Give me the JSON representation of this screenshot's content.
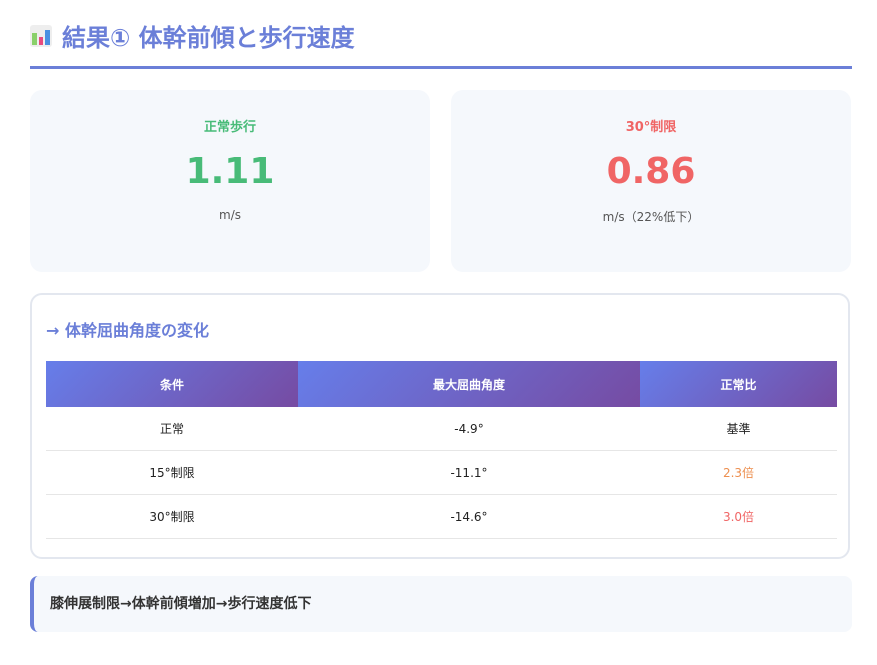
{
  "header": {
    "icon": "bar-chart-icon",
    "title": "結果① 体幹前傾と歩行速度"
  },
  "colors": {
    "accent": "#6b7fd8",
    "normal": "#48bb78",
    "restricted": "#f06565",
    "orange": "#ed8f4f"
  },
  "cards": [
    {
      "label": "正常歩行",
      "value": "1.11",
      "unit": "m/s"
    },
    {
      "label": "30°制限",
      "value": "0.86",
      "unit": "m/s（22%低下）"
    }
  ],
  "table_section": {
    "title": "→ 体幹屈曲角度の変化",
    "headers": [
      "条件",
      "最大屈曲角度",
      "正常比"
    ],
    "rows": [
      [
        "正常",
        "-4.9°",
        "基準"
      ],
      [
        "15°制限",
        "-11.1°",
        "2.3倍"
      ],
      [
        "30°制限",
        "-14.6°",
        "3.0倍"
      ]
    ]
  },
  "callout": "膝伸展制限→体幹前傾増加→歩行速度低下"
}
